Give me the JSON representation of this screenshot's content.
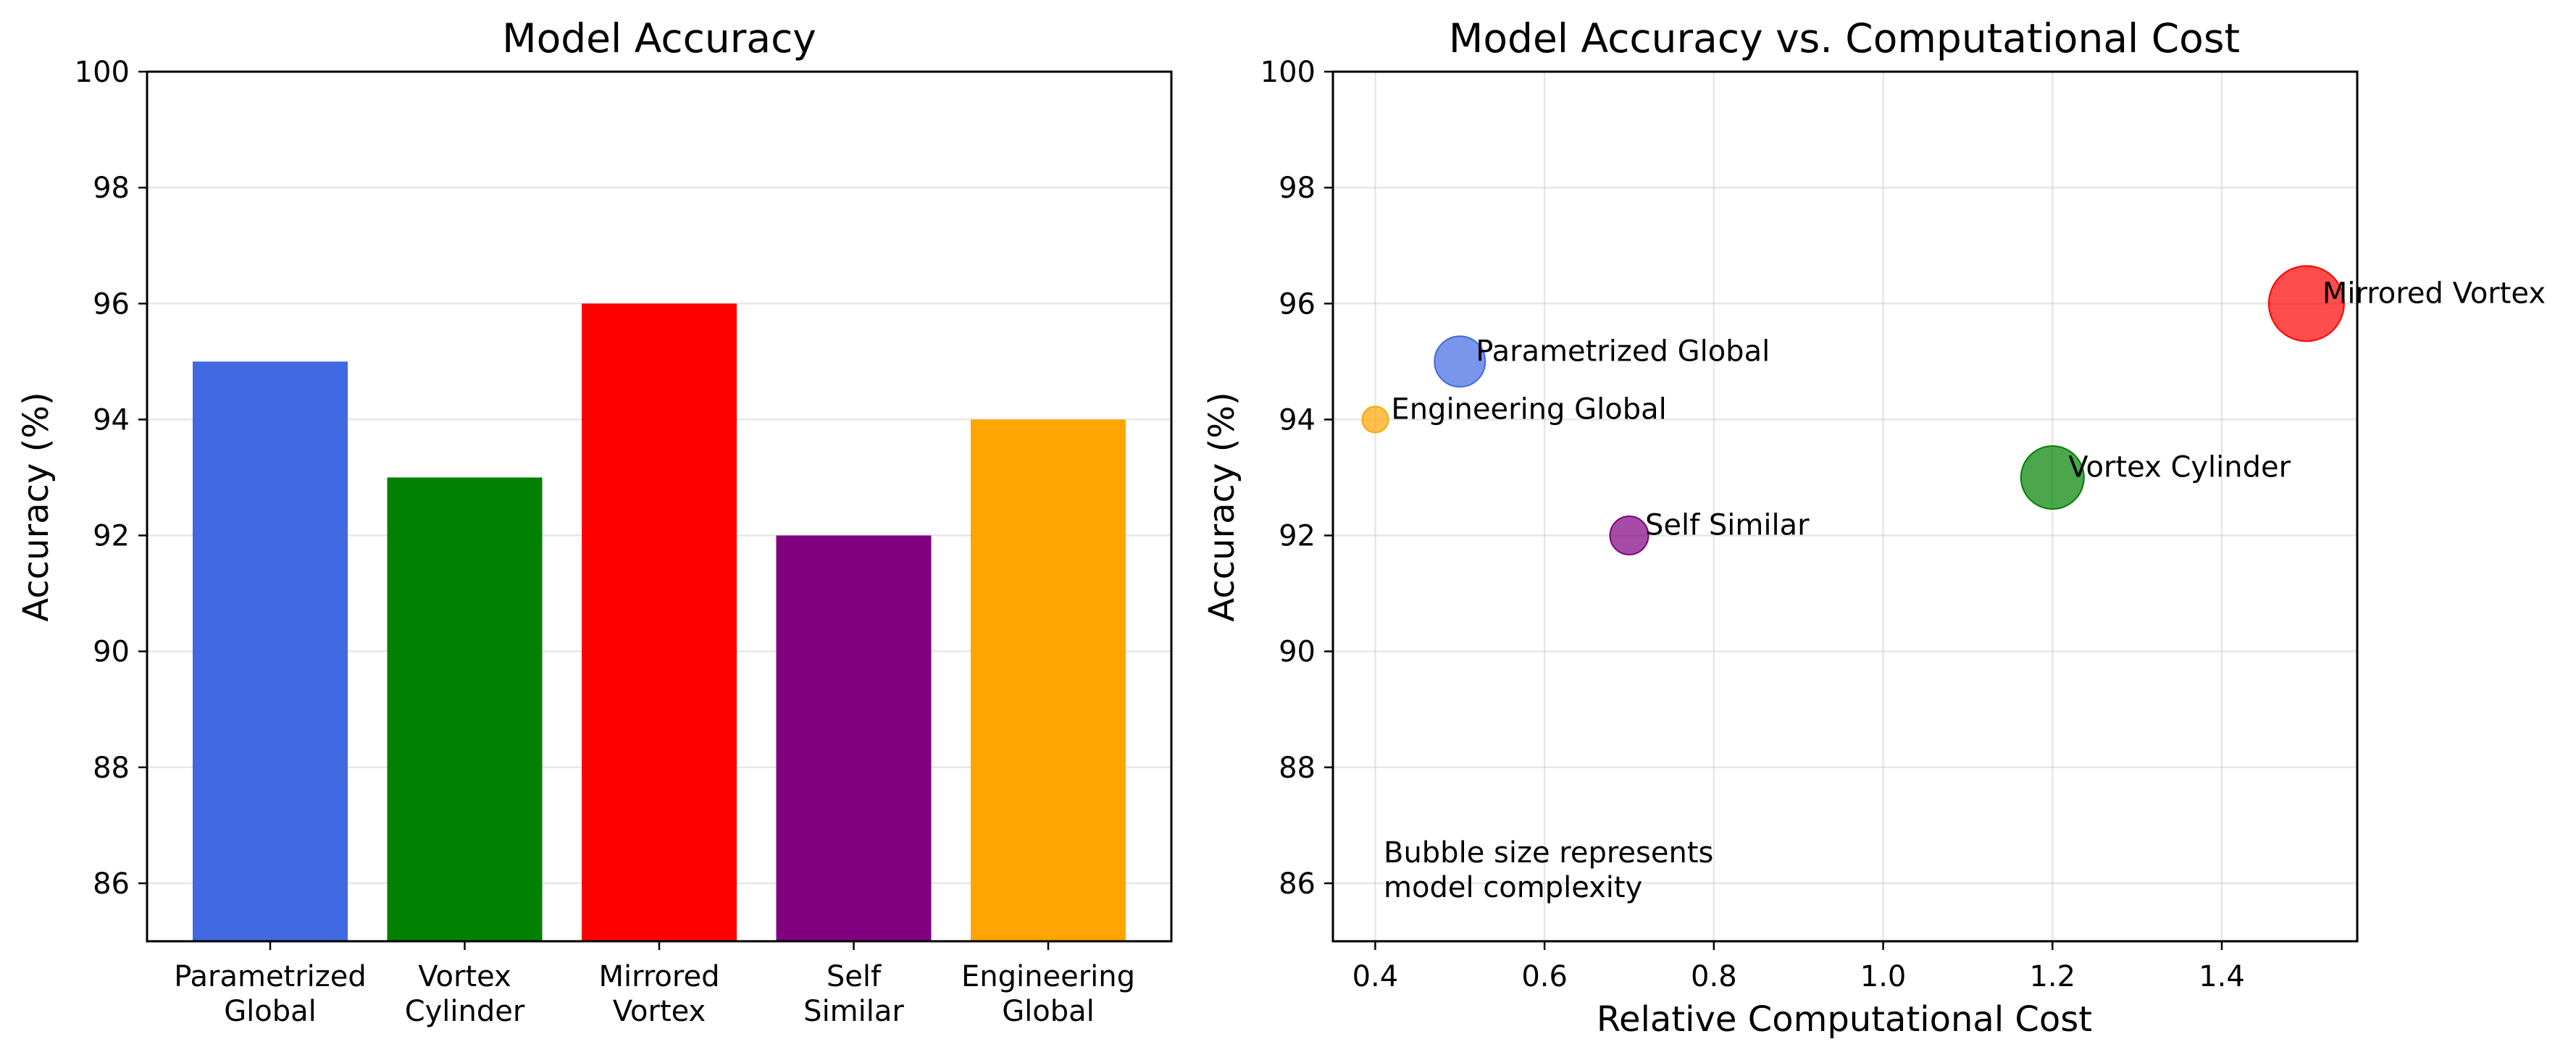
{
  "chart_data": [
    {
      "type": "bar",
      "title": "Model Accuracy",
      "xlabel": "",
      "ylabel": "Accuracy (%)",
      "categories": [
        [
          "Parametrized",
          "Global"
        ],
        [
          "Vortex",
          "Cylinder"
        ],
        [
          "Mirrored",
          "Vortex"
        ],
        [
          "Self",
          "Similar"
        ],
        [
          "Engineering",
          "Global"
        ]
      ],
      "values": [
        95,
        93,
        96,
        92,
        94
      ],
      "colors": [
        "#4169e1",
        "#008000",
        "#ff0000",
        "#800080",
        "#ffa500"
      ],
      "ylim": [
        85,
        100
      ],
      "yticks": [
        86,
        88,
        90,
        92,
        94,
        96,
        98,
        100
      ],
      "grid": "y"
    },
    {
      "type": "scatter",
      "title": "Model Accuracy vs. Computational Cost",
      "xlabel": "Relative Computational Cost",
      "ylabel": "Accuracy (%)",
      "xlim": [
        0.35,
        1.56
      ],
      "ylim": [
        85,
        100
      ],
      "xticks": [
        "0.4",
        "0.6",
        "0.8",
        "1.0",
        "1.2",
        "1.4"
      ],
      "yticks": [
        86,
        88,
        90,
        92,
        94,
        96,
        98,
        100
      ],
      "grid": "both",
      "size_meaning": "model complexity",
      "points": [
        {
          "label": "Parametrized Global",
          "x": 0.5,
          "y": 95,
          "size": 3,
          "color": "#4169e1"
        },
        {
          "label": "Vortex Cylinder",
          "x": 1.2,
          "y": 93,
          "size": 4,
          "color": "#008000"
        },
        {
          "label": "Mirrored Vortex",
          "x": 1.5,
          "y": 96,
          "size": 5,
          "color": "#ff0000"
        },
        {
          "label": "Self Similar",
          "x": 0.7,
          "y": 92,
          "size": 2,
          "color": "#800080"
        },
        {
          "label": "Engineering Global",
          "x": 0.4,
          "y": 94,
          "size": 1,
          "color": "#ffa500"
        }
      ],
      "annotation": [
        "Bubble size represents",
        "model complexity"
      ]
    }
  ]
}
